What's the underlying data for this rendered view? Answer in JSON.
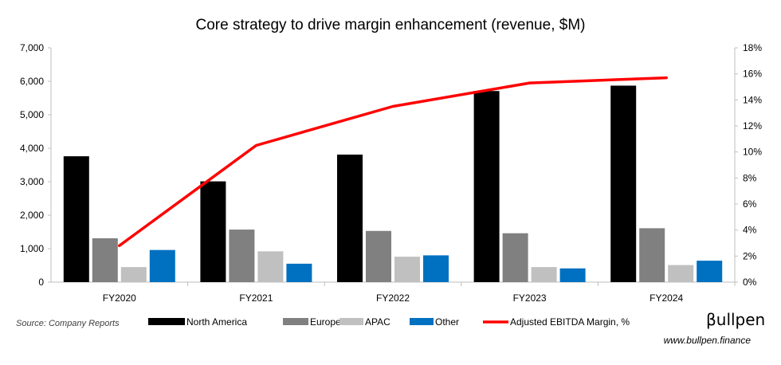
{
  "title": "Core strategy to drive margin enhancement (revenue, $M)",
  "source": "Source: Company Reports",
  "brand": "βullpen",
  "website": "www.bullpen.finance",
  "chart_data": {
    "type": "bar",
    "title": "Core strategy to drive margin enhancement (revenue, $M)",
    "categories": [
      "FY2020",
      "FY2021",
      "FY2022",
      "FY2023",
      "FY2024"
    ],
    "series": [
      {
        "name": "North America",
        "color": "#000000",
        "values": [
          3760,
          3010,
          3810,
          5710,
          5870
        ]
      },
      {
        "name": "Europe",
        "color": "#808080",
        "values": [
          1310,
          1570,
          1530,
          1460,
          1610
        ]
      },
      {
        "name": "APAC",
        "color": "#c0c0c0",
        "values": [
          450,
          920,
          760,
          450,
          510
        ]
      },
      {
        "name": "Other",
        "color": "#0070c0",
        "values": [
          960,
          550,
          800,
          410,
          640
        ]
      }
    ],
    "line_series": {
      "name": "Adjusted EBITDA Margin, %",
      "color": "#ff0000",
      "axis": "right",
      "values": [
        2.8,
        10.5,
        13.5,
        15.3,
        15.7
      ]
    },
    "y_left": {
      "min": 0,
      "max": 7000,
      "ticks": [
        "0",
        "1,000",
        "2,000",
        "3,000",
        "4,000",
        "5,000",
        "6,000",
        "7,000"
      ]
    },
    "y_right": {
      "min": 0,
      "max": 18,
      "ticks": [
        "0%",
        "2%",
        "4%",
        "6%",
        "8%",
        "10%",
        "12%",
        "14%",
        "16%",
        "18%"
      ]
    },
    "grid": false,
    "legend_position": "bottom"
  }
}
